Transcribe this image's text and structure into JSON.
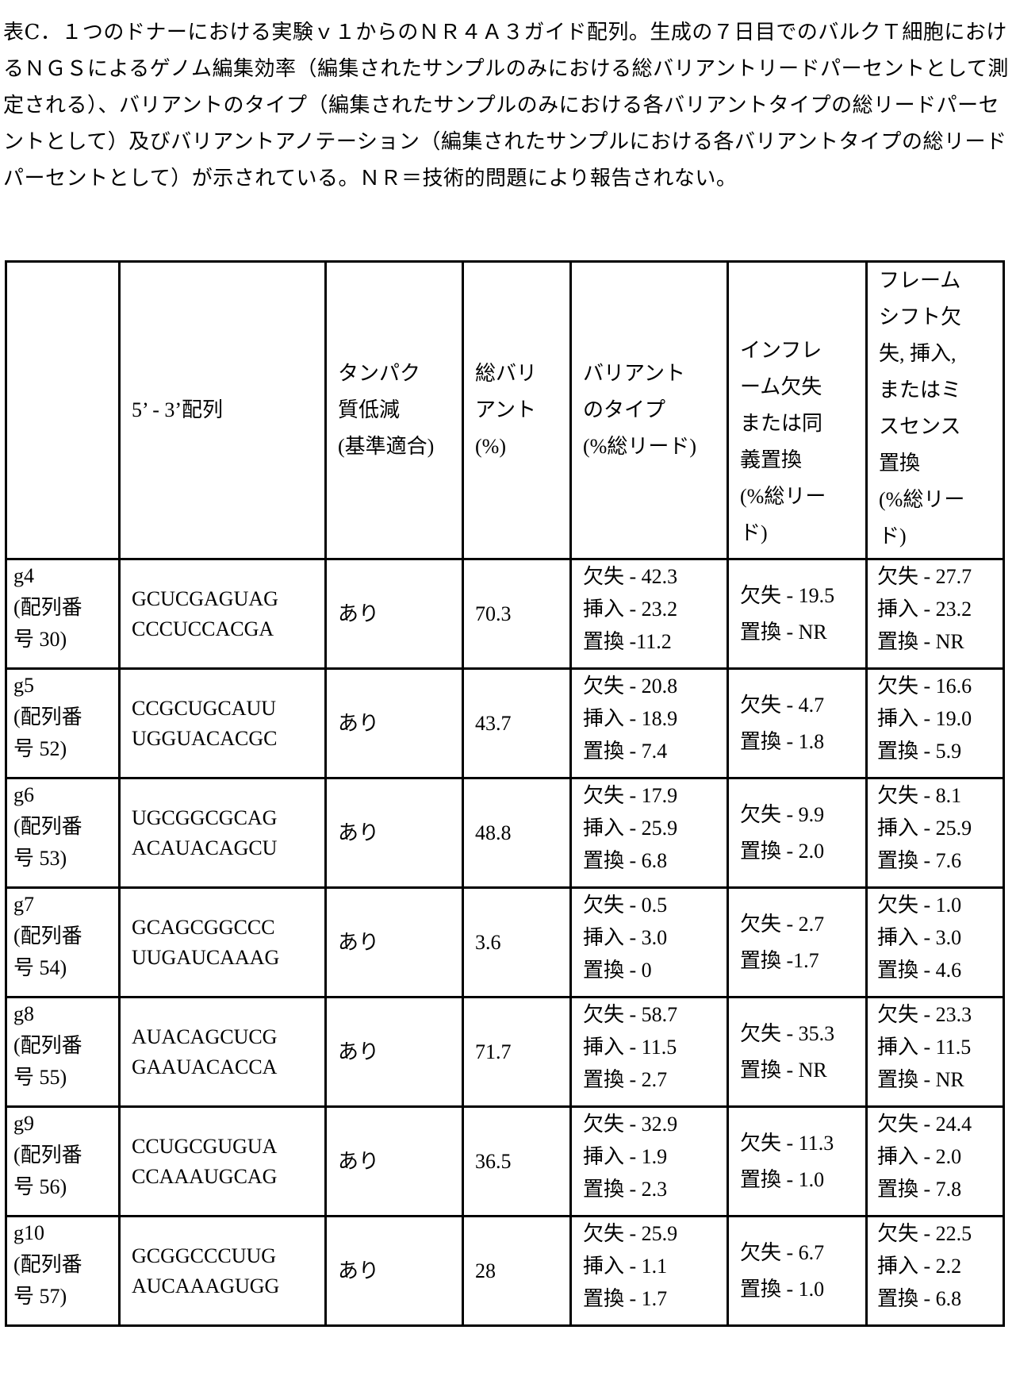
{
  "caption": "表C．１つのドナーにおける実験ｖ１からのＮＲ４Ａ３ガイド配列。生成の７日目でのバルクＴ細胞におけるＮＧＳによるゲノム編集効率（編集されたサンプルのみにおける総バリアントリードパーセントとして測定される）、バリアントのタイプ（編集されたサンプルのみにおける各バリアントタイプの総リードパーセントとして）及びバリアントアノテーション（編集されたサンプルにおける各バリアントタイプの総リードパーセントとして）が示されている。ＮＲ＝技術的問題により報告されない。",
  "headers": [
    "",
    "5’ - 3’配列",
    "タンパク\n質低減\n(基準適合)",
    "総バリ\nアント\n(%)",
    "バリアント\nのタイプ\n(%総リード)",
    "インフレ\nーム欠失\nまたは同\n義置換\n(%総リー\nド)",
    "フレーム\nシフト欠\n失, 挿入,\nまたはミ\nスセンス\n置換\n(%総リー\nド)"
  ],
  "rows": [
    {
      "guide": "g4\n(配列番\n号 30)",
      "seq": "GCUCGAGUAG\nCCCUCCACGA",
      "reduction": "あり",
      "total": "70.3",
      "types": "欠失 - 42.3\n挿入 - 23.2\n置換 -11.2",
      "inframe": "欠失 - 19.5\n置換 - NR",
      "frameshift": "欠失 - 27.7\n挿入 - 23.2\n置換 - NR"
    },
    {
      "guide": "g5\n(配列番\n号 52)",
      "seq": "CCGCUGCAUU\nUGGUACACGC",
      "reduction": "あり",
      "total": "43.7",
      "types": "欠失 - 20.8\n挿入 - 18.9\n置換 - 7.4",
      "inframe": "欠失 - 4.7\n置換 - 1.8",
      "frameshift": "欠失 - 16.6\n挿入 - 19.0\n置換 - 5.9"
    },
    {
      "guide": "g6\n(配列番\n号 53)",
      "seq": "UGCGGCGCAG\nACAUACAGCU",
      "reduction": "あり",
      "total": "48.8",
      "types": "欠失 - 17.9\n挿入 - 25.9\n置換 - 6.8",
      "inframe": "欠失 - 9.9\n置換 - 2.0",
      "frameshift": "欠失 - 8.1\n挿入 - 25.9\n置換 - 7.6"
    },
    {
      "guide": "g7\n(配列番\n号 54)",
      "seq": "GCAGCGGCCC\nUUGAUCAAAG",
      "reduction": "あり",
      "total": "3.6",
      "types": "欠失 - 0.5\n挿入 - 3.0\n置換 - 0",
      "inframe": "欠失 - 2.7\n置換 -1.7",
      "frameshift": "欠失 - 1.0\n挿入 - 3.0\n置換 - 4.6"
    },
    {
      "guide": "g8\n(配列番\n号 55)",
      "seq": "AUACAGCUCG\nGAAUACACCA",
      "reduction": "あり",
      "total": "71.7",
      "types": "欠失 - 58.7\n挿入 - 11.5\n置換 - 2.7",
      "inframe": "欠失 - 35.3\n置換 - NR",
      "frameshift": "欠失 - 23.3\n挿入 - 11.5\n置換 - NR"
    },
    {
      "guide": "g9\n(配列番\n号 56)",
      "seq": "CCUGCGUGUA\nCCAAAUGCAG",
      "reduction": "あり",
      "total": "36.5",
      "types": "欠失 - 32.9\n挿入 - 1.9\n置換 - 2.3",
      "inframe": "欠失 - 11.3\n置換 - 1.0",
      "frameshift": "欠失 - 24.4\n挿入 - 2.0\n置換 - 7.8"
    },
    {
      "guide": "g10\n(配列番\n号 57)",
      "seq": "GCGGCCCUUG\nAUCAAAGUGG",
      "reduction": "あり",
      "total": "28",
      "types": "欠失 - 25.9\n挿入 - 1.1\n置換 - 1.7",
      "inframe": "欠失 - 6.7\n置換 - 1.0",
      "frameshift": "欠失 - 22.5\n挿入 - 2.2\n置換 - 6.8"
    }
  ]
}
